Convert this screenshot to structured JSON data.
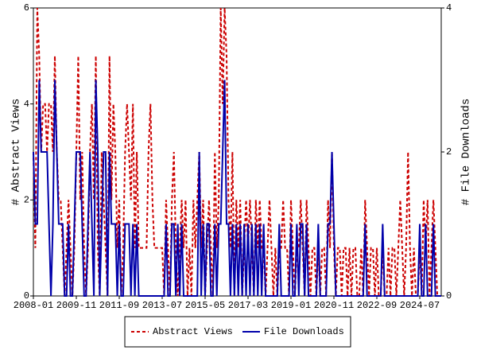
{
  "chart_data": {
    "type": "line",
    "ylabel": "# Abstract Views",
    "y2label": "# File Downloads",
    "ylim": [
      0,
      6
    ],
    "yticks": [
      0,
      2,
      4,
      6
    ],
    "y2lim": [
      0,
      4
    ],
    "y2ticks": [
      0,
      2,
      4
    ],
    "categories": [
      "2008-01",
      null,
      null,
      null,
      null,
      null,
      null,
      null,
      null,
      null,
      null,
      null,
      null,
      null,
      null,
      null,
      null,
      null,
      null,
      null,
      null,
      null,
      "2009-11",
      null,
      null,
      null,
      null,
      null,
      null,
      null,
      null,
      null,
      null,
      null,
      null,
      null,
      null,
      null,
      null,
      null,
      null,
      null,
      null,
      null,
      "2011-09",
      null,
      null,
      null,
      null,
      null,
      null,
      null,
      null,
      null,
      null,
      null,
      null,
      null,
      null,
      null,
      null,
      null,
      null,
      null,
      null,
      null,
      "2013-07",
      null,
      null,
      null,
      null,
      null,
      null,
      null,
      null,
      null,
      null,
      null,
      null,
      null,
      null,
      null,
      null,
      null,
      null,
      null,
      null,
      null,
      "2015-05",
      null,
      null,
      null,
      null,
      null,
      null,
      null,
      null,
      null,
      null,
      null,
      null,
      null,
      null,
      null,
      null,
      null,
      null,
      null,
      null,
      null,
      "2017-03",
      null,
      null,
      null,
      null,
      null,
      null,
      null,
      null,
      null,
      null,
      null,
      null,
      null,
      null,
      null,
      null,
      null,
      null,
      null,
      null,
      null,
      "2019-01",
      null,
      null,
      null,
      null,
      null,
      null,
      null,
      null,
      null,
      null,
      null,
      null,
      null,
      null,
      null,
      null,
      null,
      null,
      null,
      null,
      null,
      "2020-11",
      null,
      null,
      null,
      null,
      null,
      null,
      null,
      null,
      null,
      null,
      null,
      null,
      null,
      null,
      null,
      null,
      null,
      null,
      null,
      null,
      null,
      "2022-09",
      null,
      null,
      null,
      null,
      null,
      null,
      null,
      null,
      null,
      null,
      null,
      null,
      null,
      null,
      null,
      null,
      null,
      null,
      null,
      null,
      null,
      "2024-07",
      null,
      null,
      null,
      null,
      null,
      null,
      null,
      null,
      null,
      null,
      null
    ],
    "series": [
      {
        "name": "Abstract Views",
        "color": "#cc0000",
        "dash": true,
        "values": [
          3,
          1,
          6,
          5,
          3,
          4,
          4,
          3,
          4,
          4,
          3,
          5,
          3,
          2,
          2,
          1,
          0,
          1,
          2,
          1,
          0,
          1,
          3,
          5,
          2,
          3,
          1,
          0,
          1,
          3,
          4,
          2,
          5,
          1,
          0,
          3,
          2,
          1,
          0,
          5,
          2,
          4,
          3,
          1,
          2,
          0,
          1,
          3,
          4,
          3,
          2,
          4,
          1,
          3,
          1,
          1,
          1,
          1,
          1,
          3,
          4,
          2,
          1,
          1,
          1,
          1,
          1,
          0,
          2,
          1,
          0,
          2,
          3,
          1,
          0,
          1,
          2,
          1,
          2,
          0,
          1,
          0,
          2,
          1,
          2,
          3,
          1,
          2,
          0,
          1,
          2,
          1,
          0,
          3,
          1,
          2,
          6,
          4,
          6,
          5,
          2,
          1,
          3,
          0,
          2,
          1,
          2,
          0,
          1,
          2,
          1,
          2,
          1,
          0,
          2,
          1,
          2,
          1,
          1,
          0,
          1,
          2,
          1,
          0,
          1,
          0,
          1,
          1,
          2,
          1,
          1,
          0,
          2,
          1,
          0,
          1,
          1,
          2,
          1,
          0,
          2,
          1,
          0,
          1,
          1,
          0,
          1,
          0,
          1,
          1,
          0,
          2,
          1,
          3,
          1,
          0,
          1,
          1,
          0,
          1,
          1,
          0,
          1,
          0,
          1,
          1,
          0,
          0,
          1,
          0,
          2,
          1,
          0,
          1,
          1,
          0,
          1,
          0,
          0,
          1,
          0,
          0,
          1,
          0,
          1,
          1,
          0,
          1,
          2,
          1,
          0,
          1,
          3,
          1,
          0,
          1,
          0,
          0,
          1,
          0,
          2,
          1,
          2,
          0,
          1,
          2,
          1,
          0,
          0,
          0
        ]
      },
      {
        "name": "File Downloads",
        "color": "#0000aa",
        "axis": "y2",
        "values": [
          2,
          1,
          1,
          3,
          2,
          2,
          2,
          2,
          1,
          0,
          1,
          3,
          2,
          1,
          1,
          1,
          0,
          0,
          1,
          0,
          0,
          1,
          2,
          2,
          2,
          1,
          0,
          0,
          1,
          2,
          1,
          0,
          3,
          2,
          0,
          1,
          2,
          2,
          0,
          2,
          1,
          1,
          1,
          0,
          1,
          0,
          0,
          1,
          1,
          1,
          0,
          1,
          0,
          1,
          0,
          0,
          0,
          0,
          0,
          0,
          0,
          0,
          0,
          0,
          0,
          0,
          0,
          0,
          1,
          0,
          0,
          1,
          1,
          0,
          1,
          0,
          1,
          0,
          0,
          0,
          0,
          0,
          0,
          0,
          0,
          2,
          0,
          1,
          0,
          1,
          1,
          0,
          0,
          1,
          0,
          1,
          1,
          2,
          3,
          1,
          1,
          0,
          1,
          0,
          1,
          0,
          1,
          0,
          1,
          0,
          1,
          0,
          1,
          0,
          1,
          0,
          1,
          0,
          1,
          0,
          0,
          0,
          0,
          0,
          0,
          0,
          1,
          0,
          0,
          0,
          0,
          0,
          1,
          0,
          0,
          1,
          0,
          1,
          1,
          0,
          1,
          0,
          0,
          0,
          0,
          0,
          1,
          0,
          0,
          0,
          0,
          1,
          1,
          2,
          1,
          0,
          0,
          0,
          0,
          0,
          0,
          0,
          0,
          0,
          0,
          0,
          0,
          0,
          0,
          0,
          1,
          0,
          0,
          0,
          0,
          0,
          0,
          0,
          0,
          1,
          0,
          0,
          0,
          0,
          0,
          0,
          0,
          0,
          0,
          0,
          0,
          0,
          0,
          0,
          0,
          0,
          0,
          0,
          1,
          0,
          0,
          1,
          0,
          0,
          0,
          1,
          0,
          0,
          0,
          0
        ]
      }
    ]
  }
}
